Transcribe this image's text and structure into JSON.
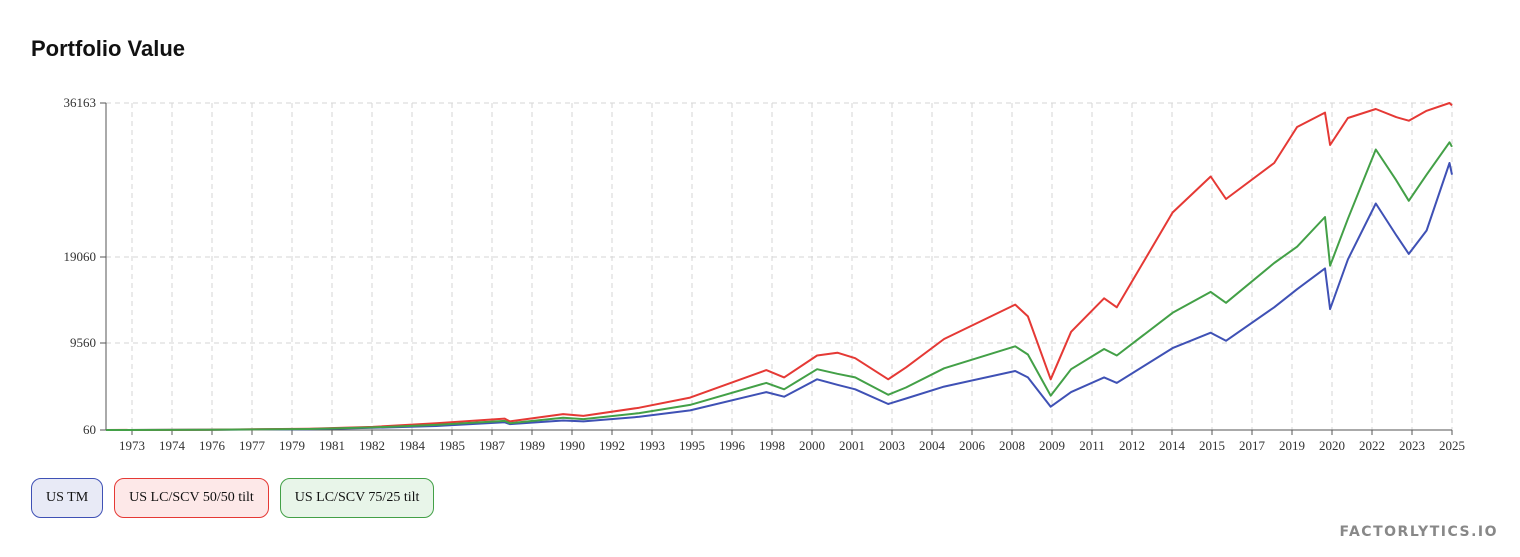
{
  "title": "Portfolio Value",
  "brand": "FACTORLYTICS.IO",
  "chart_data": {
    "type": "line",
    "title": "Portfolio Value",
    "xlabel": "",
    "ylabel": "",
    "xlim": [
      1972.0,
      2025.0
    ],
    "ylim": [
      60,
      36163
    ],
    "y_ticks": [
      60,
      9560,
      19060,
      36163
    ],
    "y_scale": "non-uniform (as labeled)",
    "x_tick_labels": [
      "1973",
      "1974",
      "1976",
      "1977",
      "1979",
      "1981",
      "1982",
      "1984",
      "1985",
      "1987",
      "1989",
      "1990",
      "1992",
      "1993",
      "1995",
      "1996",
      "1998",
      "2000",
      "2001",
      "2003",
      "2004",
      "2006",
      "2008",
      "2009",
      "2011",
      "2012",
      "2014",
      "2015",
      "2017",
      "2019",
      "2020",
      "2022",
      "2023",
      "2025"
    ],
    "grid": true,
    "legend": "bottom-left",
    "series": [
      {
        "name": "US TM",
        "color": "#3f51b5",
        "x": [
          1972.0,
          1976,
          1980,
          1982.5,
          1985,
          1987.7,
          1987.9,
          1990,
          1990.8,
          1993,
          1995,
          1998,
          1998.7,
          2000.0,
          2000.8,
          2001.5,
          2002.8,
          2003.5,
          2005,
          2007.8,
          2008.3,
          2009.2,
          2010,
          2011.3,
          2011.8,
          2014,
          2015.5,
          2016.1,
          2018.0,
          2018.9,
          2020.0,
          2020.2,
          2020.9,
          2022.0,
          2022.8,
          2023.3,
          2024.0,
          2024.9,
          2025.0
        ],
        "y": [
          60,
          80,
          150,
          300,
          500,
          900,
          700,
          1100,
          1000,
          1500,
          2200,
          4200,
          3700,
          5600,
          5000,
          4500,
          2900,
          3500,
          4800,
          6500,
          5800,
          2600,
          4200,
          5800,
          5200,
          9000,
          10700,
          9800,
          13500,
          15500,
          17800,
          13300,
          18800,
          25000,
          21500,
          19400,
          22000,
          29500,
          28200
        ]
      },
      {
        "name": "US LC/SCV 50/50 tilt",
        "color": "#e53935",
        "x": [
          1972.0,
          1976,
          1980,
          1982.5,
          1985,
          1987.7,
          1987.9,
          1990,
          1990.8,
          1993,
          1995,
          1998,
          1998.7,
          2000.0,
          2000.8,
          2001.5,
          2002.8,
          2003.5,
          2005,
          2007.8,
          2008.3,
          2009.2,
          2010,
          2011.3,
          2011.8,
          2014,
          2015.5,
          2016.1,
          2018.0,
          2018.9,
          2020.0,
          2020.2,
          2020.9,
          2022.0,
          2022.8,
          2023.3,
          2024.0,
          2024.9,
          2025.0
        ],
        "y": [
          60,
          90,
          200,
          400,
          800,
          1300,
          1000,
          1800,
          1600,
          2500,
          3600,
          6600,
          5800,
          8200,
          8500,
          7900,
          5600,
          6900,
          10000,
          13800,
          12500,
          5600,
          10800,
          14500,
          13500,
          24000,
          28000,
          25500,
          29500,
          33500,
          35100,
          31500,
          34500,
          35500,
          34600,
          34200,
          35300,
          36163,
          35900
        ]
      },
      {
        "name": "US LC/SCV 75/25 tilt",
        "color": "#43a047",
        "x": [
          1972.0,
          1976,
          1980,
          1982.5,
          1985,
          1987.7,
          1987.9,
          1990,
          1990.8,
          1993,
          1995,
          1998,
          1998.7,
          2000.0,
          2000.8,
          2001.5,
          2002.8,
          2003.5,
          2005,
          2007.8,
          2008.3,
          2009.2,
          2010,
          2011.3,
          2011.8,
          2014,
          2015.5,
          2016.1,
          2018.0,
          2018.9,
          2020.0,
          2020.2,
          2020.9,
          2022.0,
          2022.8,
          2023.3,
          2024.0,
          2024.9,
          2025.0
        ],
        "y": [
          60,
          85,
          170,
          340,
          620,
          1050,
          800,
          1400,
          1250,
          1900,
          2800,
          5200,
          4500,
          6700,
          6200,
          5800,
          3900,
          4700,
          6800,
          9200,
          8300,
          3800,
          6700,
          8900,
          8200,
          12900,
          15200,
          14000,
          18400,
          20200,
          23500,
          18100,
          23300,
          31000,
          27600,
          25300,
          28200,
          31800,
          31300
        ]
      }
    ]
  },
  "legend_items": [
    {
      "label": "US TM",
      "color": "#3f51b5",
      "bg": "#e8eaf6"
    },
    {
      "label": "US LC/SCV 50/50 tilt",
      "color": "#e53935",
      "bg": "#fde8e8"
    },
    {
      "label": "US LC/SCV 75/25 tilt",
      "color": "#43a047",
      "bg": "#e8f5e9"
    }
  ]
}
